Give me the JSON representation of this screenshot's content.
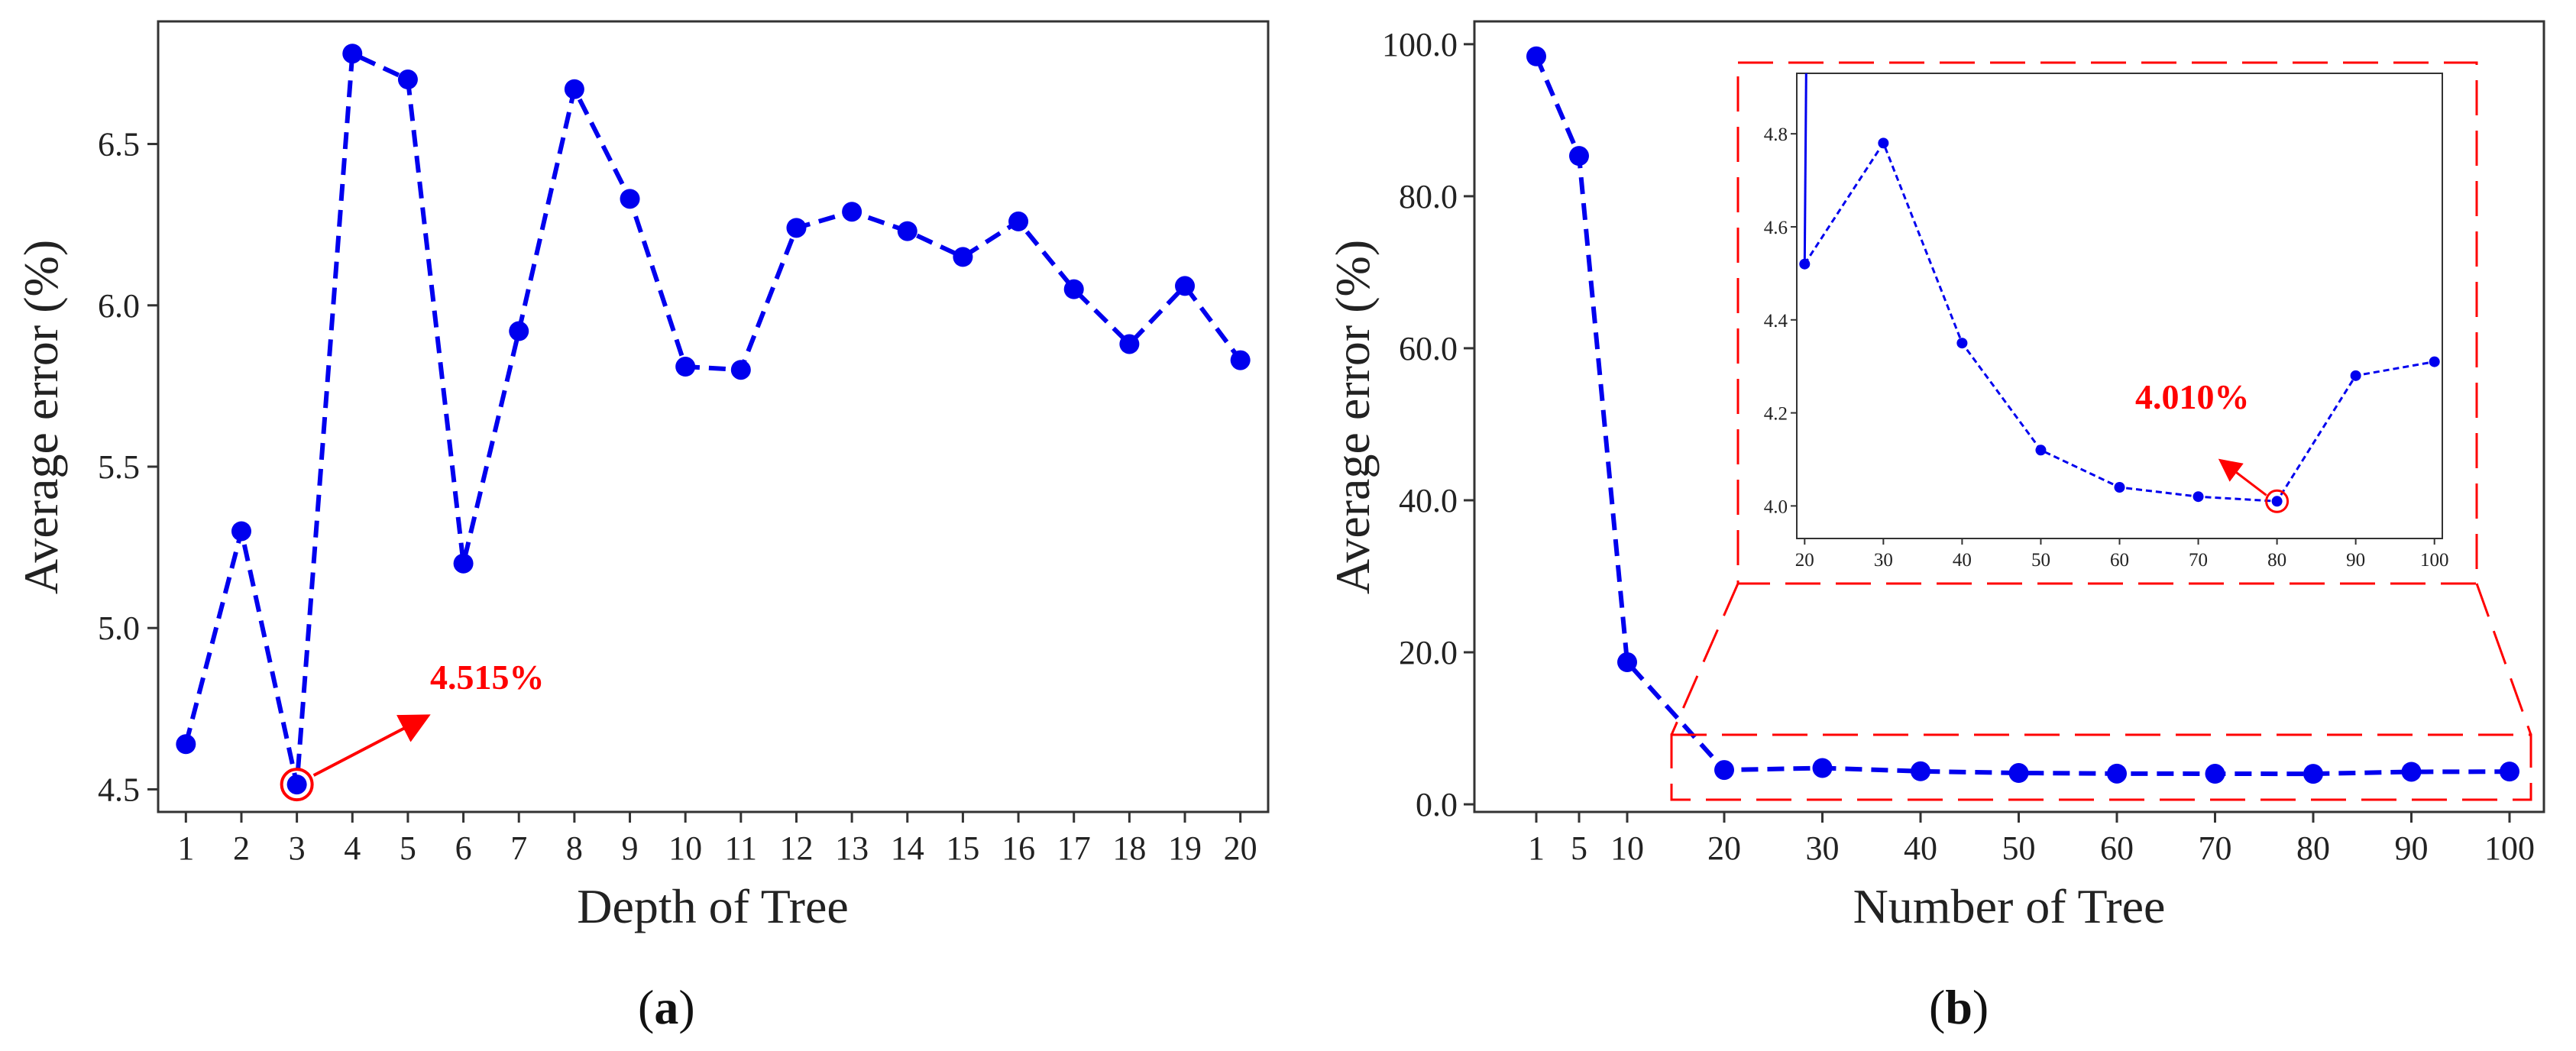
{
  "colors": {
    "series": "#0000ee",
    "highlight": "#ff0000",
    "axis": "#333333"
  },
  "panel_a": {
    "caption_open": "(",
    "caption_letter": "a",
    "caption_close": ")",
    "annotation": "4.515%"
  },
  "panel_b": {
    "caption_open": "(",
    "caption_letter": "b",
    "caption_close": ")",
    "annotation": "4.010%"
  },
  "chart_data": [
    {
      "id": "a",
      "type": "line",
      "title": "",
      "xlabel": "Depth of Tree",
      "ylabel": "Average error (%)",
      "x": [
        1,
        2,
        3,
        4,
        5,
        6,
        7,
        8,
        9,
        10,
        11,
        12,
        13,
        14,
        15,
        16,
        17,
        18,
        19,
        20
      ],
      "values": [
        4.64,
        5.3,
        4.515,
        6.78,
        6.7,
        5.2,
        5.92,
        6.67,
        6.33,
        5.81,
        5.8,
        6.24,
        6.29,
        6.23,
        6.15,
        6.26,
        6.05,
        5.88,
        6.06,
        5.83
      ],
      "xticks": [
        "1",
        "2",
        "3",
        "4",
        "5",
        "6",
        "7",
        "8",
        "9",
        "10",
        "11",
        "12",
        "13",
        "14",
        "15",
        "16",
        "17",
        "18",
        "19",
        "20"
      ],
      "yticks": [
        "4.5",
        "5.0",
        "5.5",
        "6.0",
        "6.5"
      ],
      "ytick_values": [
        4.5,
        5.0,
        5.5,
        6.0,
        6.5
      ],
      "xlim": [
        0.5,
        20.5
      ],
      "ylim": [
        4.43,
        6.88
      ],
      "highlight": {
        "x": 3,
        "y": 4.515,
        "label": "4.515%"
      },
      "line_style": "dashed",
      "grid": false
    },
    {
      "id": "b",
      "type": "line",
      "title": "",
      "xlabel": "Number of Tree",
      "ylabel": "Average error (%)",
      "categories": [
        "1",
        "5",
        "10",
        "20",
        "30",
        "40",
        "50",
        "60",
        "70",
        "80",
        "90",
        "100"
      ],
      "values": [
        98.4,
        85.3,
        18.7,
        4.52,
        4.78,
        4.35,
        4.12,
        4.04,
        4.02,
        4.01,
        4.28,
        4.31
      ],
      "yticks": [
        "0.0",
        "20.0",
        "40.0",
        "60.0",
        "80.0",
        "100.0"
      ],
      "ytick_values": [
        0,
        20,
        40,
        60,
        80,
        100
      ],
      "ylim": [
        -1,
        103
      ],
      "line_style": "dashed",
      "grid": false,
      "inset": {
        "x": [
          20,
          30,
          40,
          50,
          60,
          70,
          80,
          90,
          100
        ],
        "values": [
          4.52,
          4.78,
          4.35,
          4.12,
          4.04,
          4.02,
          4.01,
          4.28,
          4.31
        ],
        "xticks": [
          "20",
          "30",
          "40",
          "50",
          "60",
          "70",
          "80",
          "90",
          "100"
        ],
        "xtick_values": [
          20,
          30,
          40,
          50,
          60,
          70,
          80,
          90,
          100
        ],
        "yticks": [
          "4.0",
          "4.2",
          "4.4",
          "4.6",
          "4.8"
        ],
        "ytick_values": [
          4.0,
          4.2,
          4.4,
          4.6,
          4.8
        ],
        "xlim": [
          19,
          101
        ],
        "ylim": [
          3.93,
          4.93
        ],
        "highlight": {
          "x": 80,
          "y": 4.01,
          "label": "4.010%"
        }
      }
    }
  ]
}
